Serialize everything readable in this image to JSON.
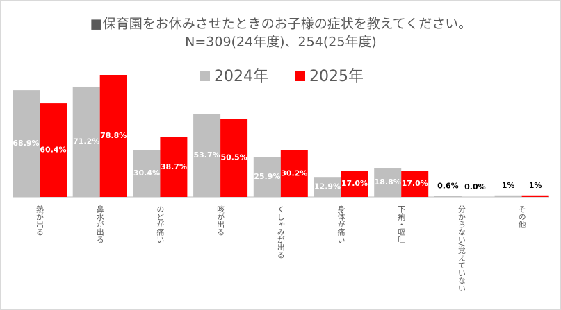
{
  "chart_data": {
    "type": "bar",
    "title": "■保育園をお休みさせたときのお子様の症状を教えてください。",
    "subtitle": "N=309(24年度)、254(25年度)",
    "categories": [
      "熱が出る",
      "鼻水が出る",
      "のどが痛い",
      "咳が出る",
      "くしゃみが出る",
      "身体が痛い",
      "下痢・嘔吐",
      "分からない/覚えていない",
      "その他"
    ],
    "series": [
      {
        "name": "2024年",
        "color": "#bfbfbf",
        "values": [
          68.9,
          71.2,
          30.4,
          53.7,
          25.9,
          12.9,
          18.8,
          0.6,
          1
        ],
        "value_labels": [
          "68.9%",
          "71.2%",
          "30.4%",
          "53.7%",
          "25.9%",
          "12.9%",
          "18.8%",
          "0.6%",
          "1%"
        ]
      },
      {
        "name": "2025年",
        "color": "#ff0000",
        "values": [
          60.4,
          78.8,
          38.7,
          50.5,
          30.2,
          17.0,
          17.0,
          0.0,
          1
        ],
        "value_labels": [
          "60.4%",
          "78.8%",
          "38.7%",
          "50.5%",
          "30.2%",
          "17.0%",
          "17.0%",
          "0.0%",
          "1%"
        ]
      }
    ],
    "legend": "top"
  }
}
